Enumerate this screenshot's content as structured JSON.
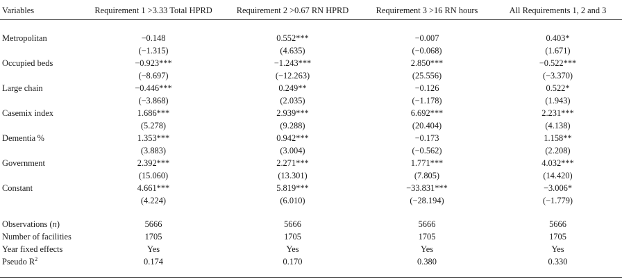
{
  "table": {
    "headers": [
      "Variables",
      "Requirement 1 >3.33 Total HPRD",
      "Requirement 2 >0.67 RN HPRD",
      "Requirement 3 >16 RN hours",
      "All Requirements 1, 2 and 3"
    ],
    "rows": [
      {
        "label": "Metropolitan",
        "coef": [
          "−0.148",
          "0.552***",
          "−0.007",
          "0.403*"
        ],
        "t": [
          "(−1.315)",
          "(4.635)",
          "(−0.068)",
          "(1.671)"
        ]
      },
      {
        "label": "Occupied beds",
        "coef": [
          "−0.923***",
          "−1.243***",
          "2.850***",
          "−0.522***"
        ],
        "t": [
          "(−8.697)",
          "(−12.263)",
          "(25.556)",
          "(−3.370)"
        ]
      },
      {
        "label": "Large chain",
        "coef": [
          "−0.446***",
          "0.249**",
          "−0.126",
          "0.522*"
        ],
        "t": [
          "(−3.868)",
          "(2.035)",
          "(−1.178)",
          "(1.943)"
        ]
      },
      {
        "label": "Casemix index",
        "coef": [
          "1.686***",
          "2.939***",
          "6.692***",
          "2.231***"
        ],
        "t": [
          "(5.278)",
          "(9.288)",
          "(20.404)",
          "(4.138)"
        ]
      },
      {
        "label": "Dementia %",
        "coef": [
          "1.353***",
          "0.942***",
          "−0.173",
          "1.158**"
        ],
        "t": [
          "(3.883)",
          "(3.004)",
          "(−0.562)",
          "(2.208)"
        ]
      },
      {
        "label": "Government",
        "coef": [
          "2.392***",
          "2.271***",
          "1.771***",
          "4.032***"
        ],
        "t": [
          "(15.060)",
          "(13.301)",
          "(7.805)",
          "(14.420)"
        ]
      },
      {
        "label": "Constant",
        "coef": [
          "4.661***",
          "5.819***",
          "−33.831***",
          "−3.006*"
        ],
        "t": [
          "(4.224)",
          "(6.010)",
          "(−28.194)",
          "(−1.779)"
        ]
      }
    ],
    "stats": {
      "observations": {
        "label_prefix": "Observations (",
        "label_var": "n",
        "label_suffix": ")",
        "values": [
          "5666",
          "5666",
          "5666",
          "5666"
        ]
      },
      "facilities": {
        "label": "Number of facilities",
        "values": [
          "1705",
          "1705",
          "1705",
          "1705"
        ]
      },
      "year_fe": {
        "label": "Year fixed effects",
        "values": [
          "Yes",
          "Yes",
          "Yes",
          "Yes"
        ]
      },
      "pseudo_r2": {
        "label_base": "Pseudo R",
        "label_sup": "2",
        "values": [
          "0.174",
          "0.170",
          "0.380",
          "0.330"
        ]
      }
    }
  }
}
